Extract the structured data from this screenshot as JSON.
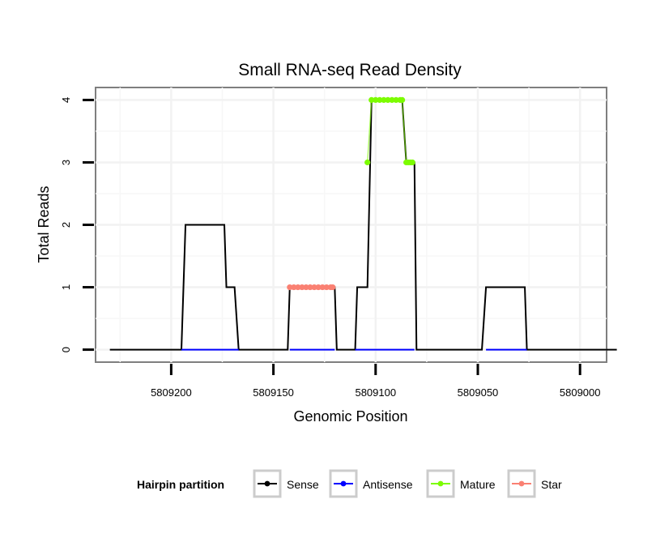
{
  "chart_data": {
    "type": "line",
    "title": "Small RNA-seq Read Density",
    "xlabel": "Genomic Position",
    "ylabel": "Total Reads",
    "xlim": [
      5809237,
      5808987
    ],
    "ylim": [
      -0.2,
      4.2
    ],
    "x_reversed": true,
    "xticks": [
      5809200,
      5809150,
      5809100,
      5809050,
      5809000
    ],
    "xtick_labels": [
      "5809200",
      "5809150",
      "5809100",
      "5809050",
      "5809000"
    ],
    "yticks": [
      0,
      1,
      2,
      3,
      4
    ],
    "ytick_labels": [
      "0",
      "1",
      "2",
      "3",
      "4"
    ],
    "grid": true,
    "legend": {
      "title": "Hairpin partition",
      "position": "bottom",
      "entries": [
        {
          "label": "Sense",
          "color": "#000000"
        },
        {
          "label": "Antisense",
          "color": "#0000ff"
        },
        {
          "label": "Mature",
          "color": "#7cfc00"
        },
        {
          "label": "Star",
          "color": "#fa8072"
        }
      ]
    },
    "series": [
      {
        "name": "Sense",
        "color": "#000000",
        "kind": "line",
        "x": [
          5809230,
          5809195,
          5809193,
          5809174,
          5809173,
          5809169,
          5809167,
          5809143,
          5809142,
          5809120,
          5809119,
          5809110,
          5809109,
          5809104,
          5809102,
          5809087,
          5809085,
          5809081,
          5809080,
          5809048,
          5809046,
          5809027,
          5809026,
          5808982
        ],
        "values": [
          0,
          0,
          2,
          2,
          1,
          1,
          0,
          0,
          1,
          1,
          0,
          0,
          1,
          1,
          4,
          4,
          3,
          3,
          0,
          0,
          1,
          1,
          0,
          0
        ]
      },
      {
        "name": "Antisense",
        "color": "#0000ff",
        "kind": "segments",
        "segments": [
          [
            5809195,
            5809167
          ],
          [
            5809142,
            5809120
          ],
          [
            5809110,
            5809081
          ],
          [
            5809046,
            5809026
          ]
        ],
        "value": 0
      },
      {
        "name": "Mature",
        "color": "#7cfc00",
        "kind": "points",
        "x": [
          5809104,
          5809102,
          5809100,
          5809098,
          5809096,
          5809094,
          5809092,
          5809090,
          5809088,
          5809087,
          5809085,
          5809084,
          5809083,
          5809082
        ],
        "values": [
          3,
          4,
          4,
          4,
          4,
          4,
          4,
          4,
          4,
          4,
          3,
          3,
          3,
          3
        ]
      },
      {
        "name": "Star",
        "color": "#fa8072",
        "kind": "points",
        "x": [
          5809142,
          5809140,
          5809138,
          5809136,
          5809134,
          5809132,
          5809130,
          5809128,
          5809126,
          5809124,
          5809122,
          5809121
        ],
        "values": [
          1,
          1,
          1,
          1,
          1,
          1,
          1,
          1,
          1,
          1,
          1,
          1
        ]
      }
    ]
  }
}
